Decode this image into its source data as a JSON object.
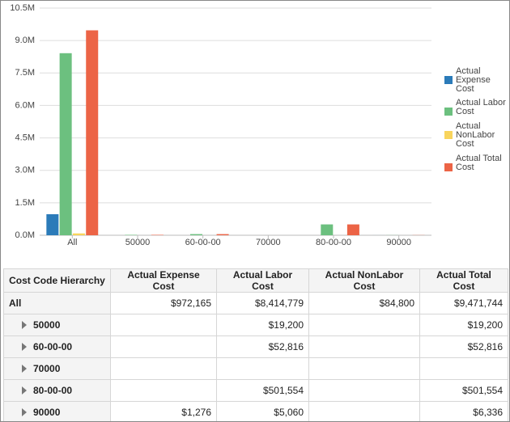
{
  "chart_data": {
    "type": "bar",
    "categories": [
      "All",
      "50000",
      "60-00-00",
      "70000",
      "80-00-00",
      "90000"
    ],
    "series": [
      {
        "name": "Actual Expense Cost",
        "color": "#2b7bb9",
        "values": [
          972165,
          null,
          null,
          null,
          null,
          1276
        ],
        "value_labels": [
          "$972,165",
          null,
          null,
          null,
          null,
          "$1,276"
        ]
      },
      {
        "name": "Actual Labor Cost",
        "color": "#6cc07f",
        "values": [
          8414779,
          19200,
          52816,
          null,
          501554,
          5060
        ],
        "value_labels": [
          "$8,414,779",
          "$19,200",
          "$52,816",
          null,
          "$501,554",
          "$5,060"
        ]
      },
      {
        "name": "Actual NonLabor Cost",
        "color": "#f8d45c",
        "values": [
          84800,
          null,
          null,
          null,
          null,
          null
        ],
        "value_labels": [
          "$84,800",
          null,
          null,
          null,
          null,
          null
        ]
      },
      {
        "name": "Actual Total Cost",
        "color": "#ec6446",
        "values": [
          9471744,
          19200,
          52816,
          null,
          501554,
          6336
        ],
        "value_labels": [
          "$9,471,744",
          "$19,200",
          "$52,816",
          null,
          "$501,554",
          "$6,336"
        ]
      }
    ],
    "ylim": [
      0,
      10500000
    ],
    "yticks": [
      {
        "value": 0,
        "label": "0.0M"
      },
      {
        "value": 1500000,
        "label": "1.5M"
      },
      {
        "value": 3000000,
        "label": "3.0M"
      },
      {
        "value": 4500000,
        "label": "4.5M"
      },
      {
        "value": 6000000,
        "label": "6.0M"
      },
      {
        "value": 7500000,
        "label": "7.5M"
      },
      {
        "value": 9000000,
        "label": "9.0M"
      },
      {
        "value": 10500000,
        "label": "10.5M"
      }
    ],
    "grid": true,
    "legend": "right"
  },
  "table": {
    "first_column_header": "Cost Code Hierarchy"
  }
}
